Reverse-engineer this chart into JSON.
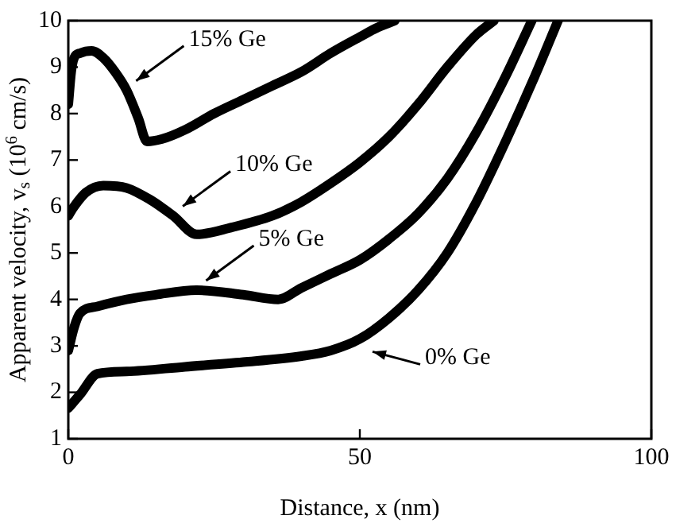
{
  "chart_data": {
    "type": "line",
    "xlabel": "Distance, x (nm)",
    "ylabel": "Apparent velocity, v$_{s}$ (10$^{6}$ cm/s)",
    "xlim": [
      0,
      100
    ],
    "ylim": [
      1,
      10
    ],
    "xticks": [
      0,
      50,
      100
    ],
    "yticks": [
      1,
      2,
      3,
      4,
      5,
      6,
      7,
      8,
      9,
      10
    ],
    "grid": false,
    "legend": false,
    "marker": "none",
    "line_style": "solid",
    "series": [
      {
        "color": "#000000",
        "x": [
          0,
          2,
          5,
          10,
          20,
          30,
          40,
          45,
          50,
          55,
          60,
          65,
          70,
          75,
          80,
          84
        ],
        "values": [
          1.66,
          1.95,
          2.4,
          2.45,
          2.55,
          2.65,
          2.78,
          2.9,
          3.15,
          3.6,
          4.2,
          5.0,
          6.1,
          7.4,
          8.8,
          10
        ]
      },
      {
        "color": "#000000",
        "x": [
          0,
          1,
          2,
          5,
          10,
          15,
          22,
          30,
          36,
          40,
          45,
          50,
          55,
          60,
          65,
          70,
          75,
          79.5
        ],
        "values": [
          2.9,
          3.4,
          3.7,
          3.85,
          4.0,
          4.1,
          4.2,
          4.1,
          4.0,
          4.25,
          4.55,
          4.85,
          5.3,
          5.85,
          6.6,
          7.6,
          8.8,
          10
        ]
      },
      {
        "color": "#000000",
        "x": [
          0,
          1,
          3,
          6,
          10,
          14,
          18,
          22,
          28,
          35,
          40,
          45,
          50,
          55,
          60,
          65,
          70,
          73
        ],
        "values": [
          5.8,
          6.0,
          6.3,
          6.45,
          6.4,
          6.15,
          5.8,
          5.4,
          5.55,
          5.8,
          6.1,
          6.5,
          6.95,
          7.5,
          8.2,
          9.0,
          9.7,
          10
        ]
      },
      {
        "color": "#000000",
        "x": [
          0,
          0.5,
          1,
          2,
          4,
          6,
          8,
          10,
          12,
          13.5,
          16,
          20,
          25,
          30,
          35,
          40,
          45,
          50,
          53,
          56
        ],
        "values": [
          8.2,
          8.9,
          9.2,
          9.3,
          9.35,
          9.2,
          8.9,
          8.5,
          7.9,
          7.4,
          7.45,
          7.65,
          8.0,
          8.3,
          8.6,
          8.9,
          9.3,
          9.65,
          9.85,
          10
        ]
      }
    ],
    "annotations": [
      {
        "text": "0% Ge",
        "x": 50,
        "y": 3.15
      },
      {
        "text": "5% Ge",
        "x": 22,
        "y": 4.2
      },
      {
        "text": "10% Ge",
        "x": 18,
        "y": 5.8
      },
      {
        "text": "15% Ge",
        "x": 10,
        "y": 8.5
      }
    ]
  }
}
